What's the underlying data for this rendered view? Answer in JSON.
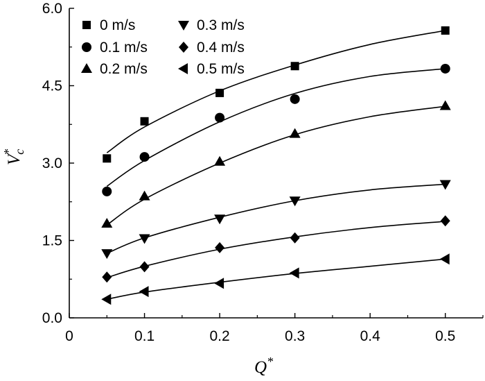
{
  "chart_data": {
    "type": "scatter",
    "title": "",
    "xlabel": "Q",
    "xlabel_superscript": "*",
    "ylabel": "V",
    "ylabel_superscript": "*",
    "ylabel_subscript": "c",
    "xlim": [
      0,
      0.55
    ],
    "ylim": [
      0,
      6.0
    ],
    "xticks": [
      0,
      0.1,
      0.2,
      0.3,
      0.4,
      0.5
    ],
    "xtick_labels": [
      "0",
      "0.1",
      "0.2",
      "0.3",
      "0.4",
      "0.5"
    ],
    "yticks": [
      0,
      1.5,
      3.0,
      4.5,
      6.0
    ],
    "ytick_labels": [
      "0.0",
      "1.5",
      "3.0",
      "4.5",
      "6.0"
    ],
    "grid": false,
    "legend_position": "top-left",
    "legend_columns": 2,
    "series": [
      {
        "name": "0 m/s",
        "marker": "square",
        "x": [
          0.05,
          0.1,
          0.2,
          0.3,
          0.5
        ],
        "y": [
          3.09,
          3.81,
          4.36,
          4.88,
          5.57
        ],
        "fit": [
          [
            0.05,
            3.2
          ],
          [
            0.1,
            3.7
          ],
          [
            0.2,
            4.4
          ],
          [
            0.3,
            4.9
          ],
          [
            0.4,
            5.3
          ],
          [
            0.5,
            5.57
          ]
        ]
      },
      {
        "name": "0.1 m/s",
        "marker": "circle",
        "x": [
          0.05,
          0.1,
          0.2,
          0.3,
          0.5
        ],
        "y": [
          2.45,
          3.12,
          3.88,
          4.24,
          4.83
        ],
        "fit": [
          [
            0.05,
            2.55
          ],
          [
            0.1,
            3.05
          ],
          [
            0.2,
            3.8
          ],
          [
            0.3,
            4.35
          ],
          [
            0.4,
            4.68
          ],
          [
            0.5,
            4.83
          ]
        ]
      },
      {
        "name": "0.2 m/s",
        "marker": "triangle-up",
        "x": [
          0.05,
          0.1,
          0.2,
          0.3,
          0.5
        ],
        "y": [
          1.83,
          2.36,
          3.03,
          3.57,
          4.11
        ],
        "fit": [
          [
            0.05,
            1.8
          ],
          [
            0.1,
            2.3
          ],
          [
            0.2,
            3.0
          ],
          [
            0.3,
            3.55
          ],
          [
            0.4,
            3.9
          ],
          [
            0.5,
            4.1
          ]
        ]
      },
      {
        "name": "0.3 m/s",
        "marker": "triangle-down",
        "x": [
          0.05,
          0.1,
          0.2,
          0.3,
          0.5
        ],
        "y": [
          1.25,
          1.54,
          1.92,
          2.27,
          2.59
        ],
        "fit": [
          [
            0.05,
            1.25
          ],
          [
            0.1,
            1.55
          ],
          [
            0.2,
            1.95
          ],
          [
            0.3,
            2.27
          ],
          [
            0.4,
            2.48
          ],
          [
            0.5,
            2.59
          ]
        ]
      },
      {
        "name": "0.4 m/s",
        "marker": "diamond",
        "x": [
          0.05,
          0.1,
          0.2,
          0.3,
          0.5
        ],
        "y": [
          0.79,
          0.99,
          1.36,
          1.55,
          1.88
        ],
        "fit": [
          [
            0.05,
            0.78
          ],
          [
            0.1,
            1.0
          ],
          [
            0.2,
            1.33
          ],
          [
            0.3,
            1.57
          ],
          [
            0.4,
            1.75
          ],
          [
            0.5,
            1.87
          ]
        ]
      },
      {
        "name": "0.5 m/s",
        "marker": "triangle-left",
        "x": [
          0.05,
          0.1,
          0.2,
          0.3,
          0.5
        ],
        "y": [
          0.36,
          0.51,
          0.67,
          0.87,
          1.14
        ],
        "fit": [
          [
            0.05,
            0.36
          ],
          [
            0.1,
            0.5
          ],
          [
            0.2,
            0.69
          ],
          [
            0.3,
            0.86
          ],
          [
            0.4,
            1.0
          ],
          [
            0.5,
            1.14
          ]
        ]
      }
    ]
  }
}
